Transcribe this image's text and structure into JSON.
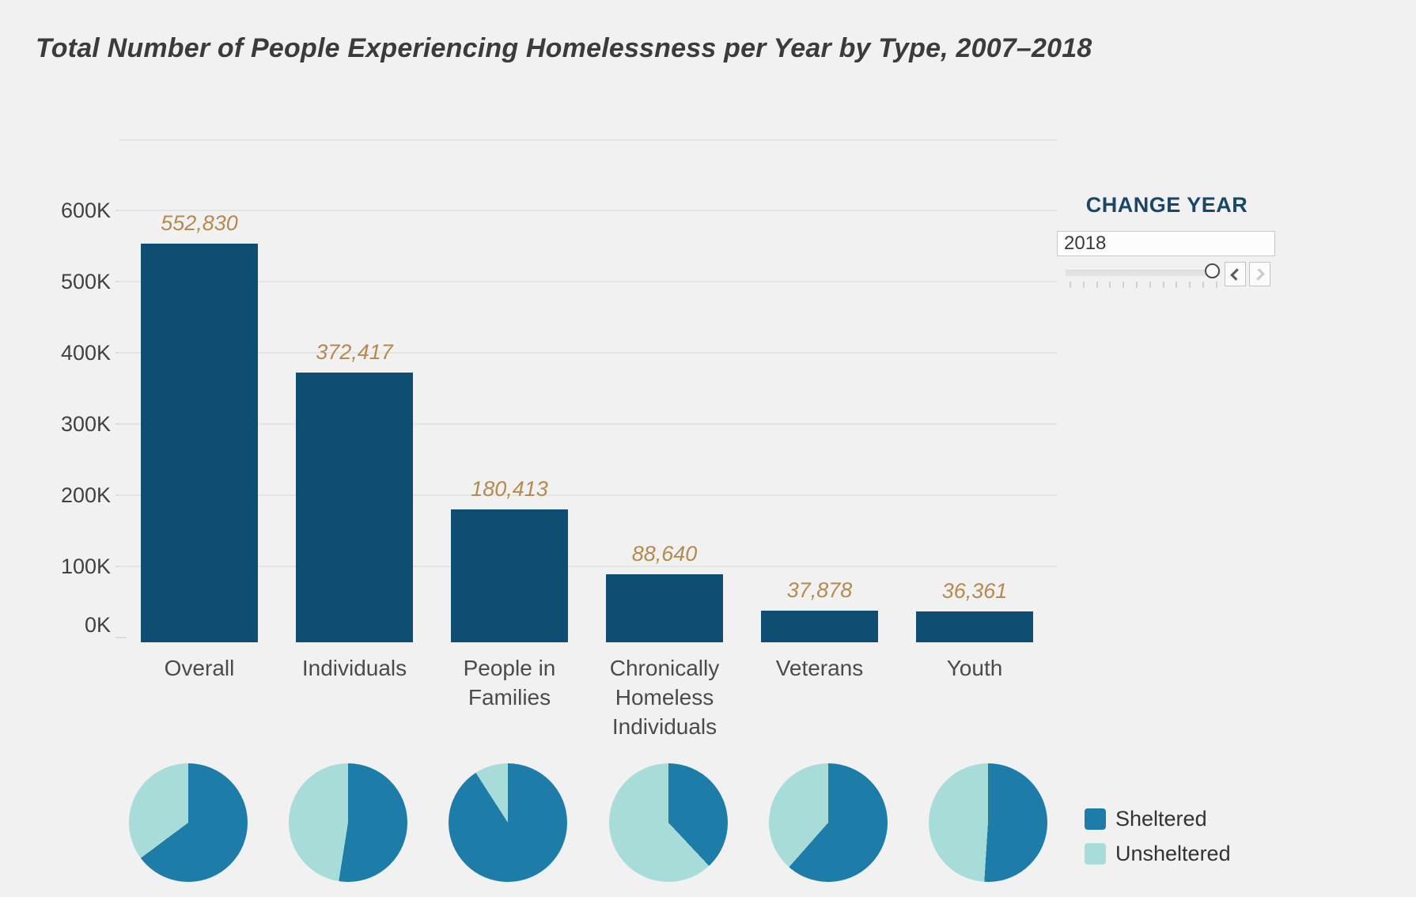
{
  "title": "Total Number of People Experiencing Homelessness per Year by Type, 2007–2018",
  "controls": {
    "change_year_label": "CHANGE YEAR",
    "year_value": "2018",
    "prev_button": "previous-year",
    "next_button": "next-year"
  },
  "legend": {
    "items": [
      {
        "label": "Sheltered",
        "color": "#1d7da8"
      },
      {
        "label": "Unsheltered",
        "color": "#a7dcd8"
      }
    ]
  },
  "chart_data": [
    {
      "type": "bar",
      "title": "Total Number of People Experiencing Homelessness per Year by Type, 2007–2018",
      "categories": [
        "Overall",
        "Individuals",
        "People in\nFamilies",
        "Chronically\nHomeless\nIndividuals",
        "Veterans",
        "Youth"
      ],
      "values": [
        552830,
        372417,
        180413,
        88640,
        37878,
        36361
      ],
      "value_labels": [
        "552,830",
        "372,417",
        "180,413",
        "88,640",
        "37,878",
        "36,361"
      ],
      "xlabel": "",
      "ylabel": "",
      "ylim": [
        0,
        600000
      ],
      "y_ticks": [
        "600K",
        "500K",
        "400K",
        "300K",
        "200K",
        "100K",
        "0K"
      ],
      "grid": true,
      "bar_color": "#0f4e73",
      "year_shown": "2018"
    },
    {
      "type": "pie",
      "categories": [
        "Overall",
        "Individuals",
        "People in Families",
        "Chronically Homeless Individuals",
        "Veterans",
        "Youth"
      ],
      "series": [
        {
          "name": "Sheltered",
          "color": "#1d7da8",
          "percent": [
            64.8,
            52.5,
            90.9,
            38.0,
            61.5,
            51.0
          ]
        },
        {
          "name": "Unsheltered",
          "color": "#a7dcd8",
          "percent": [
            35.2,
            47.5,
            9.1,
            62.0,
            38.5,
            49.0
          ]
        }
      ],
      "legend_position": "right"
    }
  ]
}
